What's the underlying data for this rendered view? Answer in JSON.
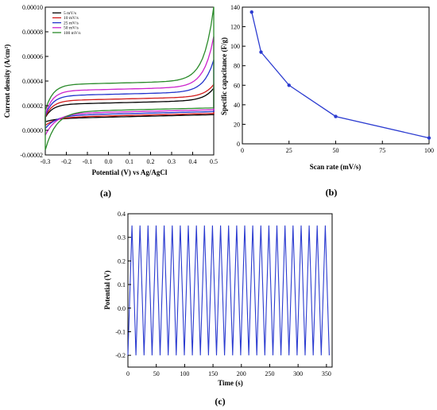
{
  "figure": {
    "panel_labels": [
      "(a)",
      "(b)",
      "(c)"
    ]
  },
  "chart_data": [
    {
      "type": "line",
      "panel": "(a)",
      "xlabel": "Potential (V) vs Ag/AgCl",
      "ylabel": "Current density (A/cm²)",
      "xlim": [
        -0.3,
        0.5
      ],
      "ylim": [
        -2e-05,
        0.0001
      ],
      "xticks": [
        "-0.3",
        "-0.2",
        "-0.1",
        "0.0",
        "0.1",
        "0.2",
        "0.3",
        "0.4",
        "0.5"
      ],
      "yticks": [
        "-0.00002",
        "0.00000",
        "0.00002",
        "0.00004",
        "0.00006",
        "0.00008",
        "0.00010"
      ],
      "legend_position": "top-left",
      "grid": false,
      "series": [
        {
          "name": "5 mV/s",
          "color": "#000000",
          "upper": 2.1e-05,
          "lower": 9.5e-06,
          "top_end": 3.1e-05,
          "start_top": 1.05e-05,
          "start_bot": 7e-06
        },
        {
          "name": "10 mV/s",
          "color": "#d11a1a",
          "upper": 2.4e-05,
          "lower": 1.05e-05,
          "top_end": 3.4e-05,
          "start_top": 1.1e-05,
          "start_bot": 4e-06
        },
        {
          "name": "25 mV/s",
          "color": "#2233cc",
          "upper": 2.8e-05,
          "lower": 1.2e-05,
          "top_end": 5.4e-05,
          "start_top": 1.2e-05,
          "start_bot": 1.5e-06
        },
        {
          "name": "50 mV/s",
          "color": "#cc22cc",
          "upper": 3.2e-05,
          "lower": 1.35e-05,
          "top_end": 7.3e-05,
          "start_top": 1.3e-05,
          "start_bot": -4e-06
        },
        {
          "name": "100 mV/s",
          "color": "#2a8a2a",
          "upper": 3.7e-05,
          "lower": 1.5e-05,
          "top_end": 9.7e-05,
          "start_top": 1.6e-05,
          "start_bot": -1.6e-05
        }
      ]
    },
    {
      "type": "line",
      "panel": "(b)",
      "xlabel": "Scan rate (mV/s)",
      "ylabel": "Specific capacitance (F/g)",
      "xlim": [
        0,
        100
      ],
      "ylim": [
        0,
        140
      ],
      "xticks": [
        "0",
        "25",
        "50",
        "75",
        "100"
      ],
      "yticks": [
        "0",
        "20",
        "40",
        "60",
        "80",
        "100",
        "120",
        "140"
      ],
      "color": "#2b3bd0",
      "x": [
        5,
        10,
        25,
        50,
        100
      ],
      "y": [
        135,
        94,
        60,
        28,
        6
      ]
    },
    {
      "type": "line",
      "panel": "(c)",
      "xlabel": "Time (s)",
      "ylabel": "Potential (V)",
      "xlim": [
        0,
        360
      ],
      "ylim": [
        -0.25,
        0.4
      ],
      "xticks": [
        "0",
        "50",
        "100",
        "150",
        "200",
        "250",
        "300",
        "350"
      ],
      "yticks": [
        "-0.2",
        "-0.1",
        "0.0",
        "0.1",
        "0.2",
        "0.3",
        "0.4"
      ],
      "color": "#2b3bd0",
      "cycles": 25,
      "v_max": 0.35,
      "v_min": -0.2,
      "t_end": 355
    }
  ]
}
